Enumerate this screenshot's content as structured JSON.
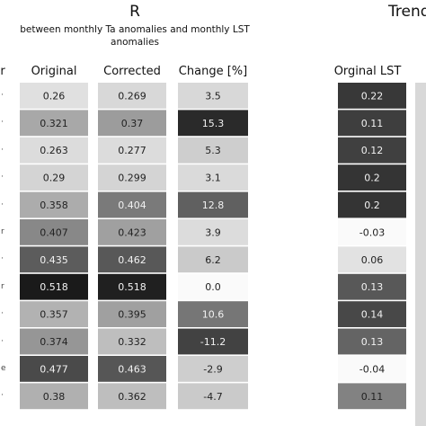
{
  "titles": {
    "left": "R",
    "left_subtitle_line1": "between monthly Ta anomalies and monthly LST",
    "left_subtitle_line2": "anomalies",
    "right": "Trend"
  },
  "headers": {
    "partial_left": "r",
    "original": "Original",
    "corrected": "Corrected",
    "change": "Change [%]",
    "original_lst": "Orginal LST"
  },
  "row_labels": [
    "·",
    "·",
    "·",
    "·",
    "·",
    "r",
    "·",
    "r",
    "·",
    "·",
    "e",
    "·"
  ],
  "chart_data": {
    "type": "heatmap",
    "title": "R",
    "subtitle": "between monthly Ta anomalies and monthly LST anomalies",
    "colormap": "greys",
    "columns": [
      {
        "name": "Original",
        "values": [
          0.26,
          0.321,
          0.263,
          0.29,
          0.358,
          0.407,
          0.435,
          0.518,
          0.357,
          0.374,
          0.477,
          0.38
        ],
        "labels": [
          "0.26",
          "0.321",
          "0.263",
          "0.29",
          "0.358",
          "0.407",
          "0.435",
          "0.518",
          "0.357",
          "0.374",
          "0.477",
          "0.38"
        ]
      },
      {
        "name": "Corrected",
        "values": [
          0.269,
          0.37,
          0.277,
          0.299,
          0.404,
          0.423,
          0.462,
          0.518,
          0.395,
          0.332,
          0.463,
          0.362
        ],
        "labels": [
          "0.269",
          "0.37",
          "0.277",
          "0.299",
          "0.404",
          "0.423",
          "0.462",
          "0.518",
          "0.395",
          "0.332",
          "0.463",
          "0.362"
        ]
      },
      {
        "name": "Change [%]",
        "values": [
          3.5,
          15.3,
          5.3,
          3.1,
          12.8,
          3.9,
          6.2,
          0.0,
          10.6,
          -11.2,
          -2.9,
          -4.7
        ],
        "labels": [
          "3.5",
          "15.3",
          "5.3",
          "3.1",
          "12.8",
          "3.9",
          "6.2",
          "0.0",
          "10.6",
          "-11.2",
          "-2.9",
          "-4.7"
        ]
      },
      {
        "name": "Orginal LST",
        "values": [
          0.22,
          0.11,
          0.12,
          0.2,
          0.2,
          -0.03,
          0.06,
          0.13,
          0.14,
          0.13,
          -0.04,
          0.11
        ],
        "labels": [
          "0.22",
          "0.11",
          "0.12",
          "0.2",
          "0.2",
          "-0.03",
          "0.06",
          "0.13",
          "0.14",
          "0.13",
          "-0.04",
          "0.11"
        ]
      }
    ],
    "cell_gray_levels": [
      [
        224,
        168,
        220,
        212,
        172,
        136,
        92,
        26,
        178,
        150,
        74,
        176
      ],
      [
        216,
        156,
        220,
        212,
        122,
        160,
        88,
        32,
        160,
        190,
        86,
        190
      ],
      [
        216,
        42,
        206,
        218,
        96,
        220,
        202,
        250,
        118,
        66,
        206,
        202
      ],
      [
        56,
        62,
        64,
        52,
        52,
        250,
        226,
        88,
        72,
        100,
        250,
        130
      ]
    ]
  }
}
